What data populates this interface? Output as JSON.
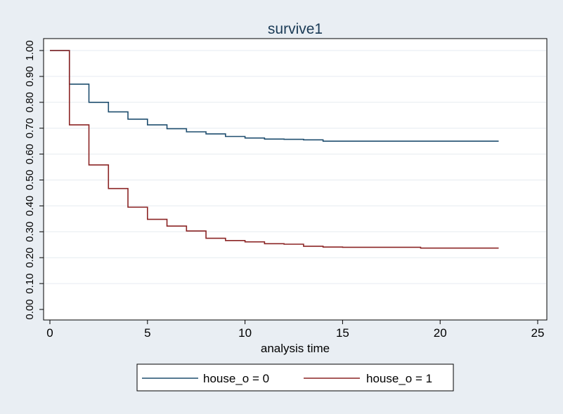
{
  "chart_data": {
    "type": "line",
    "title": "survive1",
    "xlabel": "analysis time",
    "ylabel": "",
    "xlim": [
      0,
      25
    ],
    "ylim": [
      0,
      1
    ],
    "x_ticks": [
      0,
      5,
      10,
      15,
      20,
      25
    ],
    "x_tick_labels": [
      "0",
      "5",
      "10",
      "15",
      "20",
      "25"
    ],
    "y_ticks": [
      0,
      0.1,
      0.2,
      0.3,
      0.4,
      0.5,
      0.6,
      0.7,
      0.8,
      0.9,
      1.0
    ],
    "y_tick_labels": [
      "0.00",
      "0.10",
      "0.20",
      "0.30",
      "0.40",
      "0.50",
      "0.60",
      "0.70",
      "0.80",
      "0.90",
      "1.00"
    ],
    "grid": true,
    "legend_position": "bottom",
    "series": [
      {
        "name": "house_o = 0",
        "color": "#1f4e6f",
        "step": true,
        "x": [
          0,
          1,
          2,
          3,
          4,
          5,
          6,
          7,
          8,
          9,
          10,
          11,
          12,
          13,
          14,
          15,
          16,
          17,
          18,
          19,
          20,
          21,
          22,
          23
        ],
        "y": [
          1.0,
          0.87,
          0.8,
          0.763,
          0.735,
          0.713,
          0.698,
          0.686,
          0.678,
          0.668,
          0.662,
          0.658,
          0.657,
          0.655,
          0.65,
          0.65,
          0.65,
          0.65,
          0.65,
          0.65,
          0.65,
          0.65,
          0.65,
          0.65
        ]
      },
      {
        "name": "house_o = 1",
        "color": "#8b2424",
        "step": true,
        "x": [
          0,
          1,
          2,
          3,
          4,
          5,
          6,
          7,
          8,
          9,
          10,
          11,
          12,
          13,
          14,
          15,
          16,
          17,
          18,
          19,
          20,
          21,
          22,
          23
        ],
        "y": [
          1.0,
          0.713,
          0.558,
          0.467,
          0.395,
          0.348,
          0.322,
          0.303,
          0.275,
          0.266,
          0.261,
          0.254,
          0.252,
          0.244,
          0.241,
          0.24,
          0.24,
          0.24,
          0.24,
          0.237,
          0.237,
          0.237,
          0.237,
          0.237
        ]
      }
    ]
  }
}
